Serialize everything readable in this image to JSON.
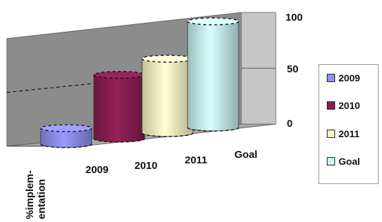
{
  "chart_data": {
    "type": "bar",
    "category_label": "%implem-\nentation",
    "series": [
      {
        "name": "2009",
        "values": [
          15
        ],
        "color": "#8f8ff0"
      },
      {
        "name": "2010",
        "values": [
          60
        ],
        "color": "#8a1e52"
      },
      {
        "name": "2011",
        "values": [
          70
        ],
        "color": "#f8f5c4"
      },
      {
        "name": "Goal",
        "values": [
          100
        ],
        "color": "#c8f2f0"
      }
    ],
    "depth_labels": [
      "2009",
      "2010",
      "2011",
      "Goal"
    ],
    "y_ticks": [
      "0",
      "50",
      "100"
    ],
    "ylim": [
      0,
      100
    ],
    "gridlines": true,
    "legend_position": "right"
  },
  "legend": [
    {
      "label": "2009",
      "color": "#8f8ff0"
    },
    {
      "label": "2010",
      "color": "#8a1e52"
    },
    {
      "label": "2011",
      "color": "#f8f5c4"
    },
    {
      "label": "Goal",
      "color": "#c8f2f0"
    }
  ]
}
